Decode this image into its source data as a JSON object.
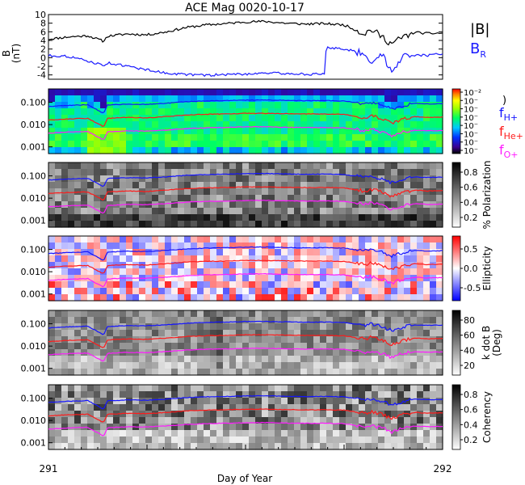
{
  "title": "ACE Mag 0020-10-17",
  "colors": {
    "total_field": "#000000",
    "radial_field": "#1a1aff",
    "h_plus": "#1414ff",
    "he_plus": "#ff1a1a",
    "o_plus": "#ff1aff",
    "label_he": "#ff1a1a",
    "label_o": "#ff1aff"
  },
  "legend": {
    "b_total": "|B|",
    "b_radial_main": "B",
    "b_radial_sub": "R",
    "f_h_main": "f",
    "f_h_sub": "H+",
    "f_he_main": "f",
    "f_he_sub": "He+",
    "f_o_main": "f",
    "f_o_sub": "O+"
  },
  "chart_data": [
    {
      "type": "line",
      "panel": "magnetic-field",
      "ylabel": "B",
      "yunit": "(nT)",
      "ylim": [
        -5,
        10
      ],
      "yticks": [
        "10",
        "8",
        "6",
        "4",
        "2",
        "0",
        "-2",
        "-4"
      ],
      "series": [
        {
          "name": "|B|",
          "color": "#000000",
          "x": [
            291.0,
            291.05,
            291.1,
            291.14,
            291.15,
            291.2,
            291.25,
            291.3,
            291.35,
            291.4,
            291.45,
            291.5,
            291.55,
            291.6,
            291.65,
            291.7,
            291.75,
            291.8,
            291.82,
            291.85,
            291.87,
            291.9,
            291.93,
            291.96,
            292.0
          ],
          "y": [
            4.3,
            4.8,
            5.1,
            3.8,
            5.0,
            5.5,
            5.3,
            6.0,
            7.0,
            7.6,
            7.9,
            8.3,
            8.4,
            8.0,
            7.8,
            7.9,
            7.6,
            5.6,
            6.5,
            4.6,
            3.2,
            4.8,
            5.9,
            5.6,
            5.7
          ]
        },
        {
          "name": "B",
          "color": "#1a1aff",
          "x": [
            291.0,
            291.05,
            291.1,
            291.14,
            291.15,
            291.2,
            291.25,
            291.3,
            291.35,
            291.4,
            291.45,
            291.5,
            291.55,
            291.6,
            291.65,
            291.7,
            291.705,
            291.75,
            291.8,
            291.82,
            291.85,
            291.87,
            291.9,
            291.93,
            291.96,
            292.0
          ],
          "y": [
            0.5,
            0.3,
            -0.8,
            -1.8,
            -1.2,
            -2.0,
            -2.8,
            -3.6,
            -3.9,
            -4.1,
            -3.9,
            -3.8,
            -3.5,
            -3.7,
            -3.8,
            -3.9,
            2.4,
            2.0,
            1.0,
            -0.8,
            0.5,
            -3.5,
            0.8,
            0.6,
            0.5,
            1.0
          ]
        }
      ]
    },
    {
      "type": "heatmap",
      "panel": "power",
      "ylim": [
        0.0005,
        0.4
      ],
      "ytick_labels": [
        "0.100",
        "0.010",
        "0.001"
      ],
      "colorbar_ticks": [
        "10⁻²",
        "10⁻",
        "10⁻",
        "10⁻",
        "10⁻",
        "10⁻",
        "10⁻",
        "10⁻"
      ],
      "colorbar_tail": ")"
    },
    {
      "type": "heatmap",
      "panel": "polarization",
      "ylim": [
        0.0005,
        0.4
      ],
      "ytick_labels": [
        "0.100",
        "0.010",
        "0.001"
      ],
      "colorbar_label": "% Polarization",
      "colorbar_ticks": [
        "0.8",
        "0.6",
        "0.4",
        "0.2"
      ]
    },
    {
      "type": "heatmap",
      "panel": "ellipticity",
      "ylim": [
        0.0005,
        0.4
      ],
      "ytick_labels": [
        "0.100",
        "0.010",
        "0.001"
      ],
      "colorbar_label": "Ellipticity",
      "colorbar_ticks": [
        "0.5",
        "0.0",
        "-0.5"
      ]
    },
    {
      "type": "heatmap",
      "panel": "wave-normal-angle",
      "ylim": [
        0.0005,
        0.4
      ],
      "ytick_labels": [
        "0.100",
        "0.010",
        "0.001"
      ],
      "colorbar_label_1": "k dot B",
      "colorbar_label_2": "(Deg)",
      "colorbar_ticks": [
        "80",
        "60",
        "40",
        "20"
      ]
    },
    {
      "type": "heatmap",
      "panel": "coherency",
      "ylim": [
        0.0005,
        0.4
      ],
      "ytick_labels": [
        "0.100",
        "0.010",
        "0.001"
      ],
      "colorbar_label": "Coherency",
      "colorbar_ticks": [
        "0.8",
        "0.6",
        "0.4",
        "0.2"
      ]
    }
  ],
  "gyro_lines": {
    "x": [
      291.0,
      291.05,
      291.1,
      291.14,
      291.15,
      291.2,
      291.25,
      291.3,
      291.35,
      291.4,
      291.45,
      291.5,
      291.55,
      291.6,
      291.65,
      291.7,
      291.75,
      291.8,
      291.82,
      291.85,
      291.87,
      291.9,
      291.93,
      291.96,
      292.0
    ],
    "f_h_plus": [
      0.065,
      0.073,
      0.078,
      0.032,
      0.076,
      0.083,
      0.081,
      0.091,
      0.106,
      0.115,
      0.12,
      0.126,
      0.128,
      0.122,
      0.118,
      0.12,
      0.115,
      0.085,
      0.099,
      0.07,
      0.049,
      0.073,
      0.09,
      0.085,
      0.087
    ],
    "f_he_plus": [
      0.016,
      0.018,
      0.019,
      0.008,
      0.019,
      0.021,
      0.02,
      0.023,
      0.027,
      0.029,
      0.03,
      0.032,
      0.032,
      0.031,
      0.03,
      0.03,
      0.029,
      0.021,
      0.025,
      0.018,
      0.012,
      0.018,
      0.023,
      0.021,
      0.022
    ],
    "f_o_plus": [
      0.0041,
      0.0046,
      0.0049,
      0.002,
      0.0047,
      0.0052,
      0.0051,
      0.0057,
      0.0066,
      0.0072,
      0.0075,
      0.0079,
      0.008,
      0.0076,
      0.0074,
      0.0075,
      0.0072,
      0.0053,
      0.0062,
      0.0044,
      0.0031,
      0.0046,
      0.0056,
      0.0053,
      0.0054
    ]
  },
  "x_axis": {
    "label": "Day of Year",
    "start": "291",
    "end": "292",
    "range": [
      291,
      292
    ]
  }
}
